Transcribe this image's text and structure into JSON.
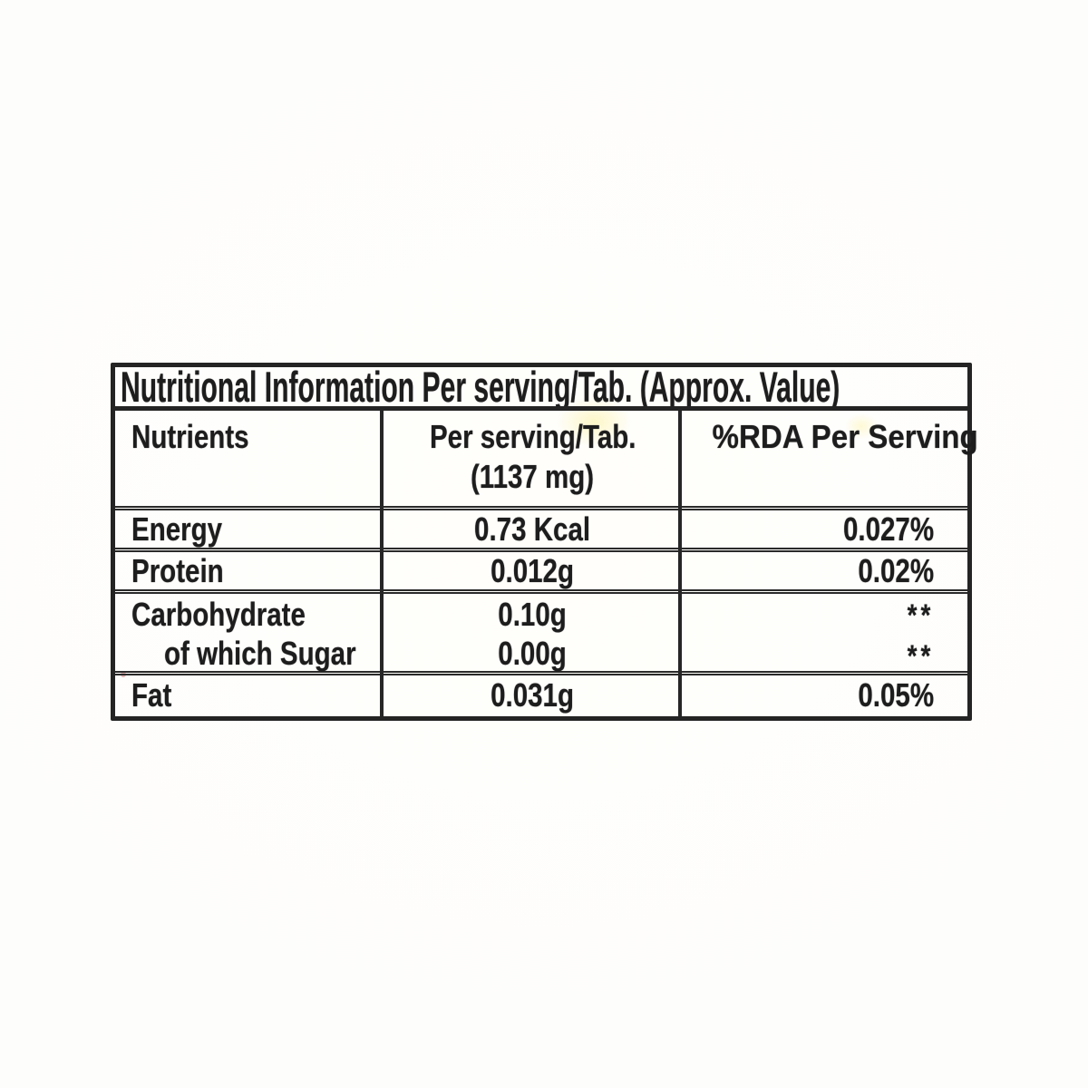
{
  "page": {
    "paper_color": "#fefefd",
    "ink_color": "#1d1d1d"
  },
  "nutrition_table": {
    "title": "Nutritional Information Per serving/Tab. (Approx. Value)",
    "header": {
      "nutrients": "Nutrients",
      "per_serving_line1": "Per serving/Tab.",
      "per_serving_line2": "(1137 mg)",
      "rda": "%RDA Per Serving"
    },
    "rows": [
      {
        "nutrient": "Energy",
        "per_serving": "0.73 Kcal",
        "rda": "0.027%"
      },
      {
        "nutrient": "Protein",
        "per_serving": "0.012g",
        "rda": "0.02%"
      },
      {
        "nutrient": "Carbohydrate",
        "per_serving": "0.10g",
        "rda": "**",
        "sub_nutrient": "of which Sugar",
        "sub_per_serving": "0.00g",
        "sub_rda": "**"
      },
      {
        "nutrient": "Fat",
        "per_serving": "0.031g",
        "rda": "0.05%"
      }
    ]
  }
}
